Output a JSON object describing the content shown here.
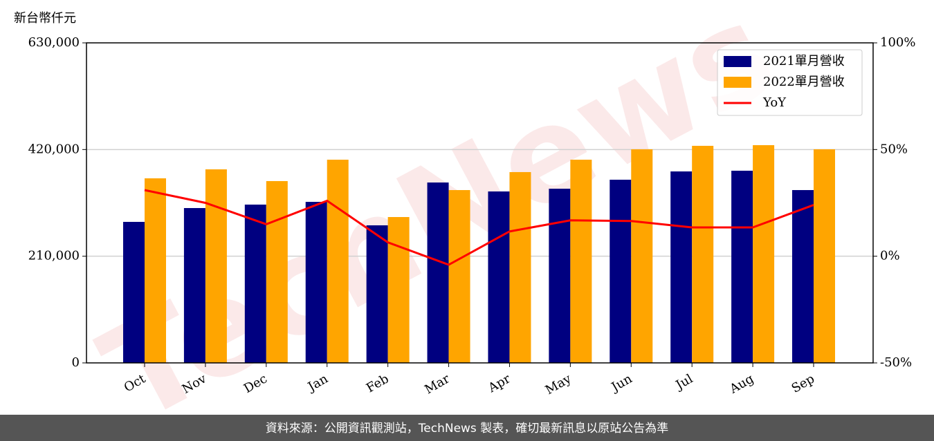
{
  "chart_data": {
    "type": "bar_line",
    "y_label": "新台幣仟元",
    "watermark": "TechNews",
    "footer": "資料來源：公開資訊觀測站，TechNews 製表，確切最新訊息以原站公告為準",
    "categories": [
      "Oct",
      "Nov",
      "Dec",
      "Jan",
      "Feb",
      "Mar",
      "Apr",
      "May",
      "Jun",
      "Jul",
      "Aug",
      "Sep"
    ],
    "series": [
      {
        "name": "2021單月營收",
        "color": "#000080",
        "type": "bar",
        "values": [
          277600,
          304800,
          311600,
          317000,
          270800,
          355100,
          337500,
          342900,
          360600,
          376900,
          378300,
          340200
        ]
      },
      {
        "name": "2022單月營收",
        "color": "#ffa500",
        "type": "bar",
        "values": [
          363300,
          381000,
          357900,
          400000,
          287100,
          340200,
          375600,
          400000,
          420500,
          427300,
          428600,
          420500
        ]
      },
      {
        "name": "YoY",
        "color": "#ff0000",
        "type": "line",
        "axis": "y2",
        "values": [
          31,
          25,
          15,
          26,
          6.5,
          -4,
          11.6,
          16.8,
          16.5,
          13.5,
          13.5,
          24
        ]
      }
    ],
    "ylim": [
      0,
      630000
    ],
    "yticks": [
      0,
      {
        "value": 210000,
        "label": "210,000"
      },
      {
        "value": 420000,
        "label": "420,000"
      },
      {
        "value": 630000,
        "label": "630,000"
      }
    ],
    "y2lim": [
      -50,
      100
    ],
    "y2ticks": [
      {
        "value": -50,
        "label": "-50%"
      },
      {
        "value": 0,
        "label": "0%"
      },
      {
        "value": 50,
        "label": "50%"
      },
      {
        "value": 100,
        "label": "100%"
      }
    ],
    "grid": true,
    "legend": "upper right"
  }
}
